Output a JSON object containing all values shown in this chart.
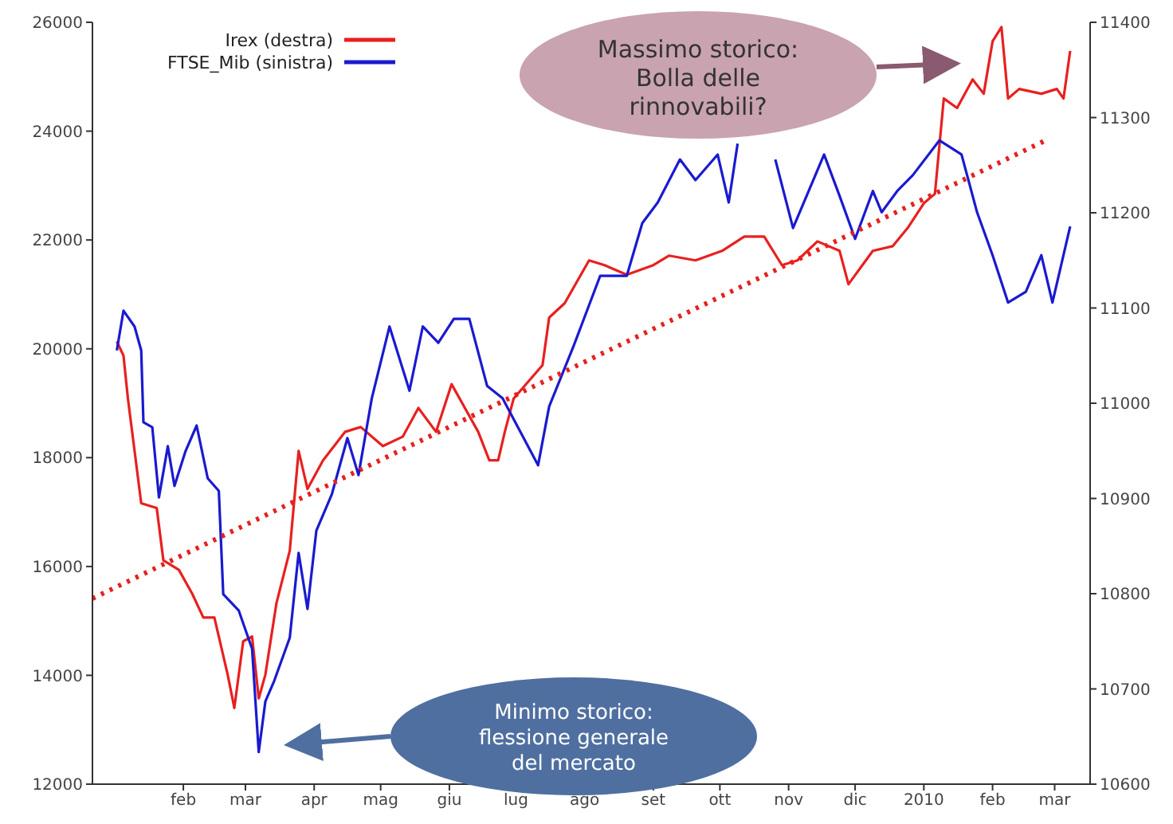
{
  "chart_data": {
    "type": "line",
    "legend": "top left",
    "marker": "none",
    "grid": false,
    "xlim": [
      "2008-12-22",
      "2010-03-17"
    ],
    "xticks": [
      {
        "value": "2009-02-01",
        "label": "feb"
      },
      {
        "value": "2009-03-01",
        "label": "mar"
      },
      {
        "value": "2009-04-01",
        "label": "apr"
      },
      {
        "value": "2009-05-01",
        "label": "mag"
      },
      {
        "value": "2009-06-01",
        "label": "giu"
      },
      {
        "value": "2009-07-01",
        "label": "lug"
      },
      {
        "value": "2009-08-01",
        "label": "ago"
      },
      {
        "value": "2009-09-01",
        "label": "set"
      },
      {
        "value": "2009-10-01",
        "label": "ott"
      },
      {
        "value": "2009-11-01",
        "label": "nov"
      },
      {
        "value": "2009-12-01",
        "label": "dic"
      },
      {
        "value": "2010-01-01",
        "label": "2010"
      },
      {
        "value": "2010-02-01",
        "label": "feb"
      },
      {
        "value": "2010-03-01",
        "label": "mar"
      }
    ],
    "ylim": [
      12000,
      26000
    ],
    "yticks": [
      12000,
      14000,
      16000,
      18000,
      20000,
      22000,
      24000,
      26000
    ],
    "y2lim": [
      10600,
      11400
    ],
    "y2ticks": [
      10600,
      10700,
      10800,
      10900,
      11000,
      11100,
      11200,
      11300,
      11400
    ],
    "series": [
      {
        "name": "Irex (destra)",
        "color": "#e82020",
        "axis": "y2",
        "x": [
          "2009-01-02",
          "2009-01-05",
          "2009-01-07",
          "2009-01-13",
          "2009-01-20",
          "2009-01-23",
          "2009-01-30",
          "2009-02-05",
          "2009-02-10",
          "2009-02-15",
          "2009-02-21",
          "2009-02-24",
          "2009-02-28",
          "2009-03-04",
          "2009-03-07",
          "2009-03-10",
          "2009-03-15",
          "2009-03-21",
          "2009-03-25",
          "2009-03-29",
          "2009-04-05",
          "2009-04-15",
          "2009-04-22",
          "2009-05-02",
          "2009-05-11",
          "2009-05-18",
          "2009-05-26",
          "2009-06-02",
          "2009-06-14",
          "2009-06-19",
          "2009-06-23",
          "2009-06-26",
          "2009-06-30",
          "2009-07-13",
          "2009-07-16",
          "2009-07-23",
          "2009-08-03",
          "2009-08-10",
          "2009-08-20",
          "2009-09-01",
          "2009-09-08",
          "2009-09-20",
          "2009-10-02",
          "2009-10-12",
          "2009-10-21",
          "2009-10-29",
          "2009-11-05",
          "2009-11-14",
          "2009-11-24",
          "2009-11-28",
          "2009-12-09",
          "2009-12-18",
          "2009-12-25",
          "2010-01-01",
          "2010-01-06",
          "2010-01-10",
          "2010-01-16",
          "2010-01-23",
          "2010-01-28",
          "2010-02-01",
          "2010-02-05",
          "2010-02-08",
          "2010-02-13",
          "2010-02-23",
          "2010-03-02",
          "2010-03-05",
          "2010-03-08"
        ],
        "values": [
          11065,
          11050,
          11005,
          10895,
          10890,
          10835,
          10825,
          10800,
          10775,
          10775,
          10715,
          10680,
          10750,
          10755,
          10690,
          10715,
          10790,
          10845,
          10950,
          10910,
          10940,
          10970,
          10975,
          10955,
          10965,
          10995,
          10970,
          11020,
          10970,
          10940,
          10940,
          10970,
          11005,
          11040,
          11090,
          11105,
          11150,
          11145,
          11135,
          11145,
          11155,
          11150,
          11160,
          11175,
          11175,
          11145,
          11150,
          11170,
          11160,
          11125,
          11160,
          11165,
          11185,
          11210,
          11220,
          11320,
          11310,
          11340,
          11325,
          11380,
          11395,
          11320,
          11330,
          11325,
          11330,
          11320,
          11370
        ]
      },
      {
        "name": "FTSE_Mib (sinistra)",
        "color": "#1a1ad0",
        "x": [
          "2009-01-02",
          "2009-01-05",
          "2009-01-10",
          "2009-01-13",
          "2009-01-14",
          "2009-01-18",
          "2009-01-21",
          "2009-01-25",
          "2009-01-28",
          "2009-02-02",
          "2009-02-07",
          "2009-02-12",
          "2009-02-17",
          "2009-02-19",
          "2009-02-26",
          "2009-03-04",
          "2009-03-07",
          "2009-03-10",
          "2009-03-14",
          "2009-03-21",
          "2009-03-25",
          "2009-03-29",
          "2009-04-02",
          "2009-04-09",
          "2009-04-16",
          "2009-04-21",
          "2009-04-27",
          "2009-05-05",
          "2009-05-14",
          "2009-05-20",
          "2009-05-27",
          "2009-06-03",
          "2009-06-10",
          "2009-06-18",
          "2009-06-25",
          "2009-07-11",
          "2009-07-16",
          "2009-07-27",
          "2009-08-08",
          "2009-08-20",
          "2009-08-27",
          "2009-09-03",
          "2009-09-13",
          "2009-09-20",
          "2009-09-30",
          "2009-10-05",
          "2009-10-09",
          "2009-10-14",
          "2009-10-24",
          "2009-10-26",
          "2009-11-03",
          "2009-11-17",
          "2009-11-24",
          "2009-12-01",
          "2009-12-09",
          "2009-12-13",
          "2009-12-20",
          "2009-12-27",
          "2010-01-08",
          "2010-01-18",
          "2010-01-25",
          "2010-02-01",
          "2010-02-08",
          "2010-02-16",
          "2010-02-23",
          "2010-02-28",
          "2010-03-08"
        ],
        "values": [
          19970,
          20700,
          20410,
          19970,
          18650,
          18560,
          17270,
          18210,
          17480,
          18120,
          18590,
          17620,
          17390,
          15490,
          15190,
          14490,
          12590,
          13520,
          13900,
          14690,
          16250,
          15220,
          16660,
          17330,
          18360,
          17680,
          19090,
          20410,
          19230,
          20410,
          20110,
          20550,
          20550,
          19320,
          19090,
          17860,
          18940,
          20050,
          21340,
          21340,
          22310,
          22690,
          23480,
          23100,
          23570,
          22690,
          23770,
          null,
          null,
          23480,
          22220,
          23570,
          22810,
          22020,
          22900,
          22510,
          22900,
          23190,
          23830,
          23570,
          22510,
          21720,
          20850,
          21050,
          21720,
          20850,
          22250
        ]
      },
      {
        "type": "line",
        "color": "#e82020",
        "axis": "y2",
        "line_style": "dotted",
        "x": [
          "2008-12-22",
          "2010-02-24"
        ],
        "values": [
          10795,
          11275
        ]
      }
    ],
    "annotations": [
      "Massimo storico:\nBolla delle\nrinnovabili?",
      "Minimo storico:\nflessione generale\ndel mercato"
    ]
  }
}
